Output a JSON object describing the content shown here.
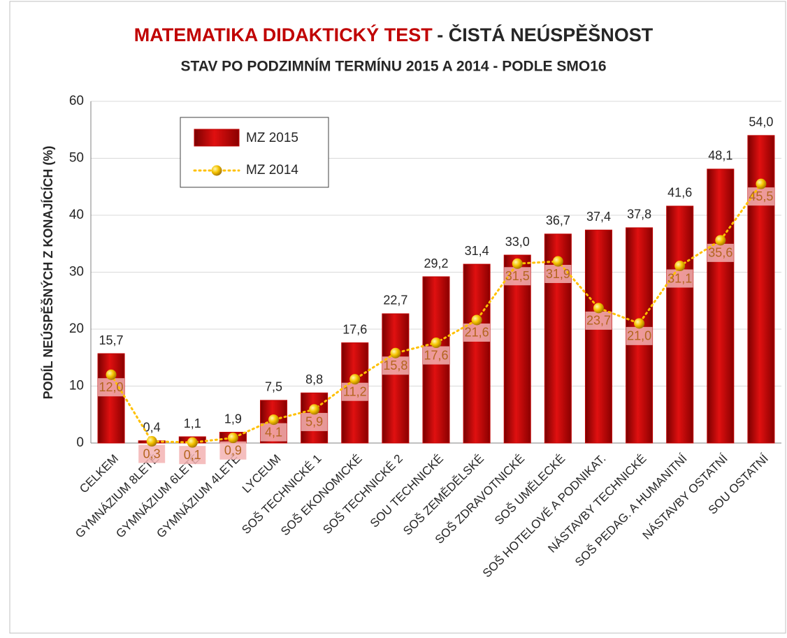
{
  "chart_data": {
    "type": "bar",
    "title": [
      "MATEMATIKA DIDAKTICKÝ TEST",
      "- ČISTÁ NEÚSPĚŠNOST"
    ],
    "subtitle": "STAV PO PODZIMNÍM TERMÍNU 2015 A 2014 - PODLE SMO16",
    "y_label": "PODÍL NEÚSPĚŠNÝCH Z KONAJÍCÍCH (%)",
    "categories": [
      "CELKEM",
      "GYMNÁZIUM 8LETÉ",
      "GYMNÁZIUM 6LETÉ",
      "GYMNÁZIUM 4LETÉ",
      "LYCEUM",
      "SOŠ TECHNICKÉ 1",
      "SOŠ EKONOMICKÉ",
      "SOŠ TECHNICKÉ 2",
      "SOU TECHNICKÉ",
      "SOŠ ZEMĚDĚLSKÉ",
      "SOŠ ZDRAVOTNICKÉ",
      "SOŠ UMĚLECKÉ",
      "SOŠ HOTELOVÉ A PODNIKAT.",
      "NÁSTAVBY TECHNICKÉ",
      "SOŠ PEDAG. A HUMANITNÍ",
      "NÁSTAVBY OSTATNÍ",
      "SOU OSTATNÍ"
    ],
    "series": [
      {
        "name": "MZ 2015",
        "type": "bar",
        "color": "#c00000",
        "values": [
          15.7,
          0.4,
          1.1,
          1.9,
          7.5,
          8.8,
          17.6,
          22.7,
          29.2,
          31.4,
          33.0,
          36.7,
          37.4,
          37.8,
          41.6,
          48.1,
          54.0
        ],
        "value_labels": [
          "15,7",
          "0,4",
          "1,1",
          "1,9",
          "7,5",
          "8,8",
          "17,6",
          "22,7",
          "29,2",
          "31,4",
          "33,0",
          "36,7",
          "37,4",
          "37,8",
          "41,6",
          "48,1",
          "54,0"
        ]
      },
      {
        "name": "MZ 2014",
        "type": "line",
        "color": "#ffc000",
        "values": [
          12.0,
          0.3,
          0.1,
          0.9,
          4.1,
          5.9,
          11.2,
          15.8,
          17.6,
          21.6,
          31.5,
          31.9,
          23.7,
          21.0,
          31.1,
          35.6,
          45.5
        ],
        "value_labels": [
          "12,0",
          "0,3",
          "0,1",
          "0,9",
          "4,1",
          "5,9",
          "11,2",
          "15,8",
          "17,6",
          "21,6",
          "31,5",
          "31,9",
          "23,7",
          "21,0",
          "31,1",
          "35,6",
          "45,5"
        ]
      }
    ],
    "ylim": [
      0,
      60
    ],
    "yticks": [
      0,
      10,
      20,
      30,
      40,
      50,
      60
    ],
    "grid": true
  }
}
